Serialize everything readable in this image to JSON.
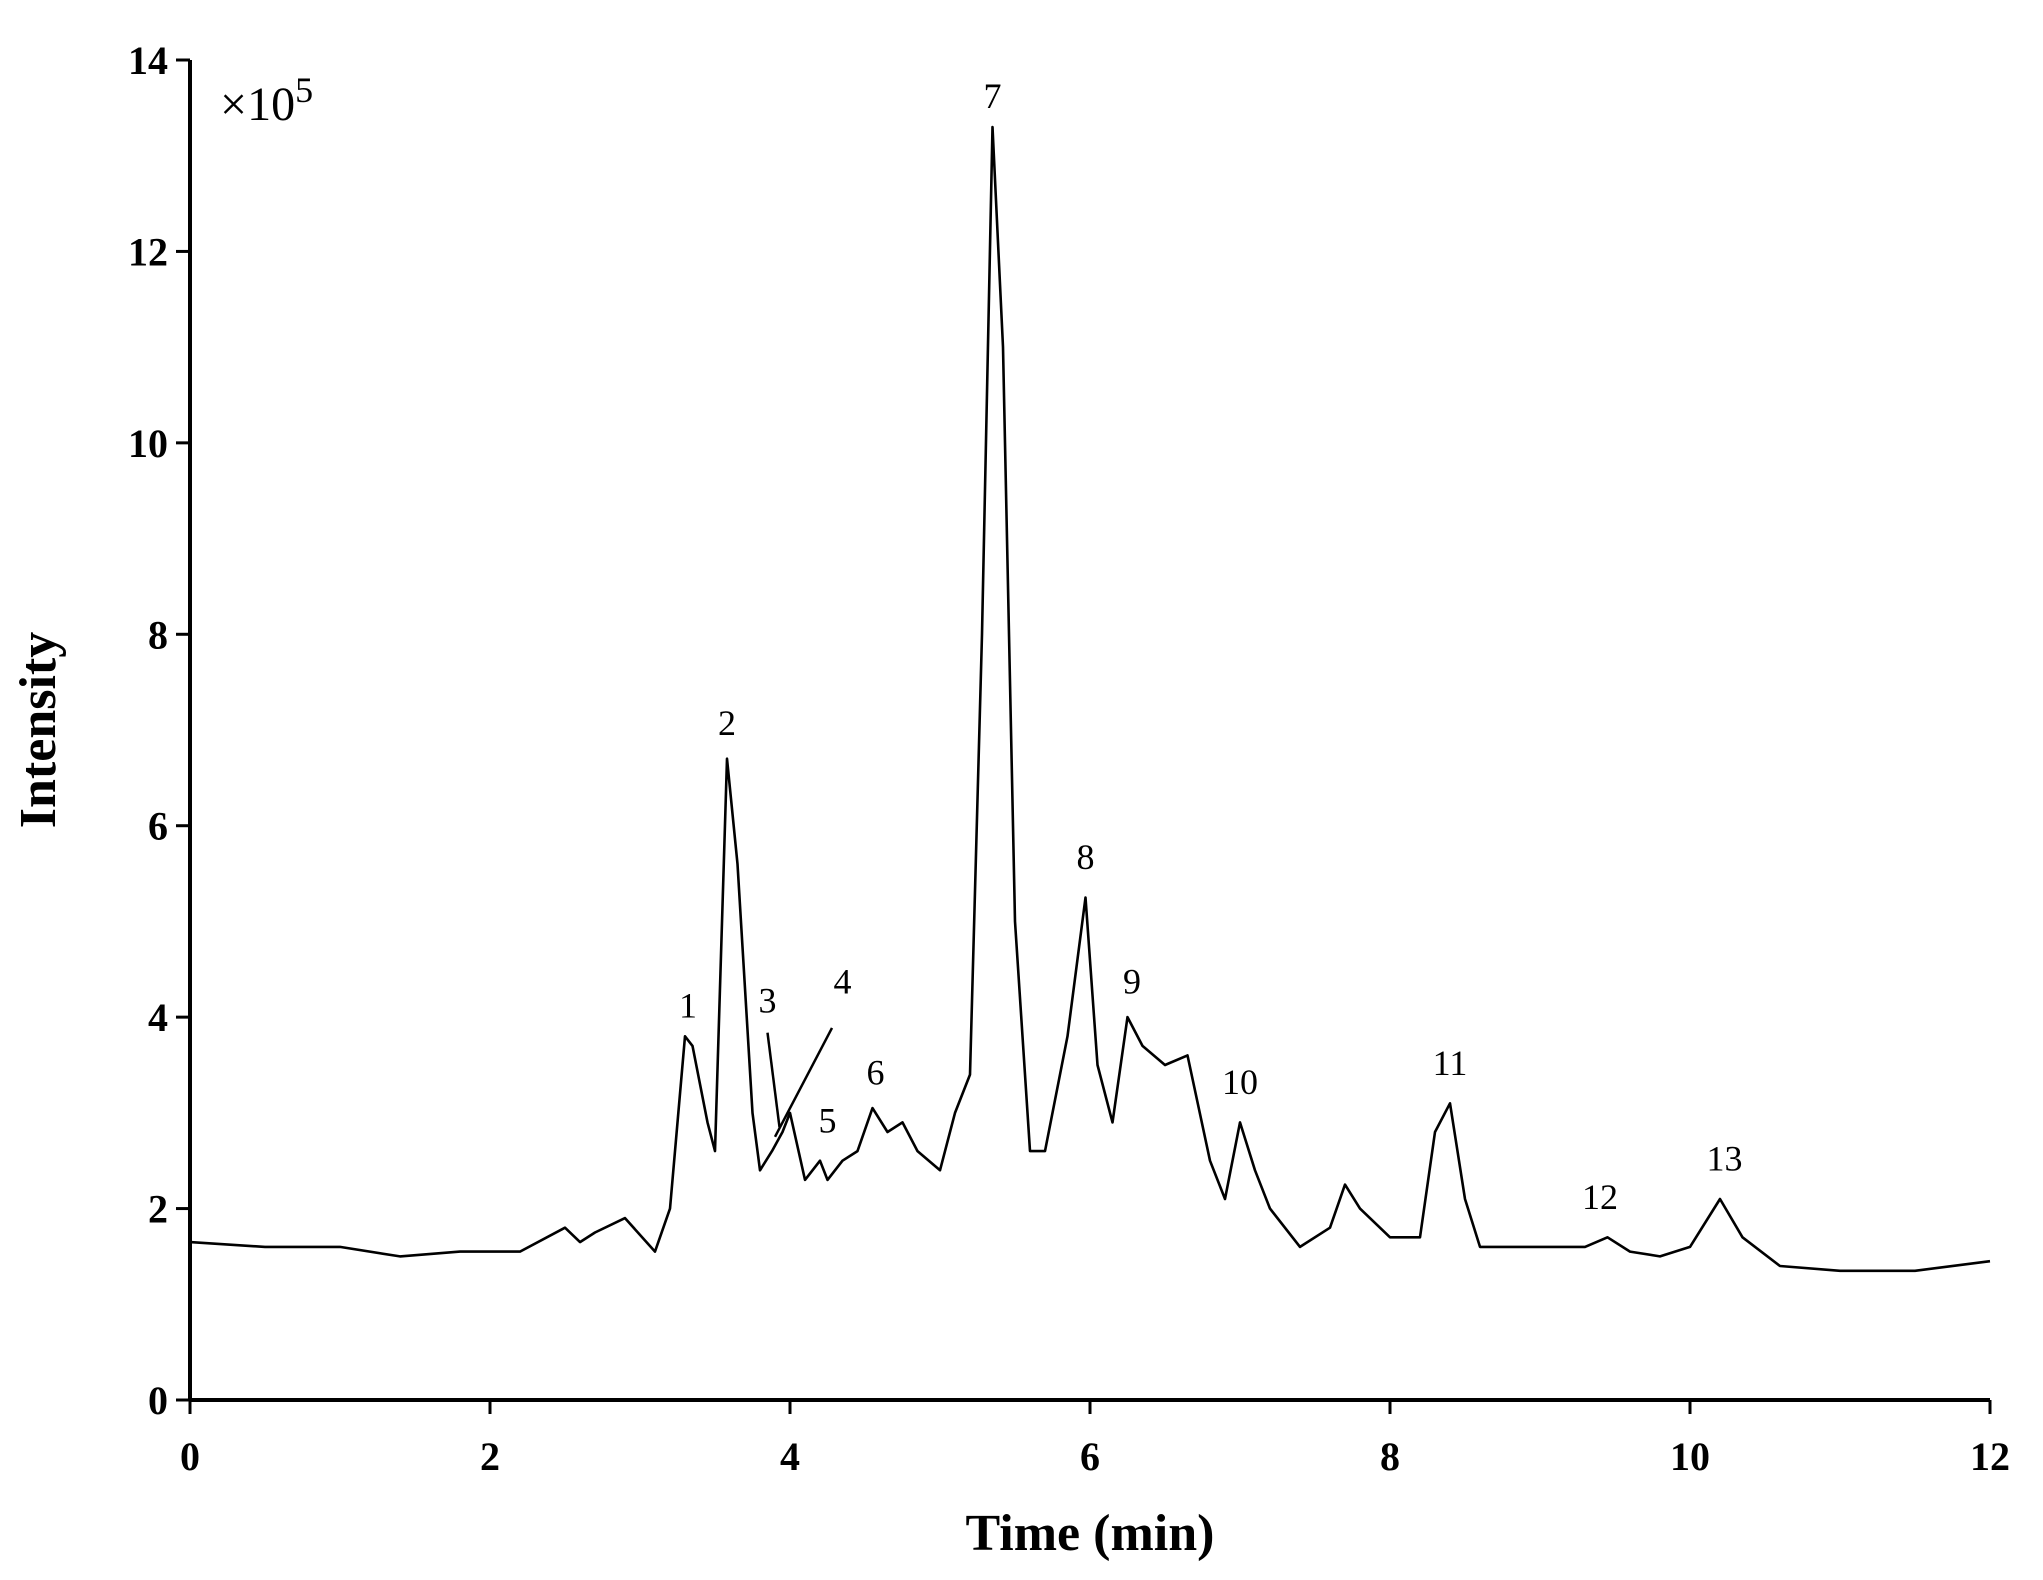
{
  "chart_data": {
    "type": "line",
    "xlabel": "Time (min)",
    "ylabel": "Intensity",
    "multiplier": {
      "base": "×10",
      "exponent": "5"
    },
    "xlim": [
      0,
      12
    ],
    "ylim": [
      0,
      14
    ],
    "xticks": [
      "0",
      "2",
      "4",
      "6",
      "8",
      "10",
      "12"
    ],
    "yticks": [
      "0",
      "2",
      "4",
      "6",
      "8",
      "10",
      "12",
      "14"
    ],
    "grid": false,
    "x": [
      0,
      0.5,
      1,
      1.4,
      1.8,
      2.2,
      2.5,
      2.6,
      2.7,
      2.9,
      3.1,
      3.2,
      3.3,
      3.35,
      3.45,
      3.5,
      3.58,
      3.65,
      3.75,
      3.8,
      3.88,
      3.95,
      4.0,
      4.1,
      4.2,
      4.25,
      4.35,
      4.45,
      4.55,
      4.65,
      4.75,
      4.85,
      5.0,
      5.1,
      5.2,
      5.28,
      5.35,
      5.42,
      5.5,
      5.6,
      5.7,
      5.85,
      5.97,
      6.05,
      6.15,
      6.25,
      6.35,
      6.5,
      6.65,
      6.8,
      6.9,
      7.0,
      7.1,
      7.2,
      7.4,
      7.6,
      7.7,
      7.8,
      8.0,
      8.2,
      8.3,
      8.4,
      8.5,
      8.6,
      9.0,
      9.3,
      9.45,
      9.6,
      9.8,
      10.0,
      10.2,
      10.35,
      10.6,
      11.0,
      11.5,
      12.0
    ],
    "y": [
      1.65,
      1.6,
      1.6,
      1.5,
      1.55,
      1.55,
      1.8,
      1.65,
      1.75,
      1.9,
      1.55,
      2.0,
      3.8,
      3.7,
      2.9,
      2.6,
      6.7,
      5.6,
      3.0,
      2.4,
      2.6,
      2.8,
      3.0,
      2.3,
      2.5,
      2.3,
      2.5,
      2.6,
      3.05,
      2.8,
      2.9,
      2.6,
      2.4,
      3.0,
      3.4,
      8.0,
      13.3,
      11.0,
      5.0,
      2.6,
      2.6,
      3.8,
      5.25,
      3.5,
      2.9,
      4.0,
      3.7,
      3.5,
      3.6,
      2.5,
      2.1,
      2.9,
      2.4,
      2.0,
      1.6,
      1.8,
      2.25,
      2.0,
      1.7,
      1.7,
      2.8,
      3.1,
      2.1,
      1.6,
      1.6,
      1.6,
      1.7,
      1.55,
      1.5,
      1.6,
      2.1,
      1.7,
      1.4,
      1.35,
      1.35,
      1.45
    ],
    "peaks": [
      {
        "label": "1",
        "x": 3.32,
        "y": 3.85
      },
      {
        "label": "2",
        "x": 3.58,
        "y": 6.8
      },
      {
        "label": "3",
        "x": 3.85,
        "y": 3.9
      },
      {
        "label": "4",
        "x": 4.35,
        "y": 4.1
      },
      {
        "label": "5",
        "x": 4.25,
        "y": 2.65
      },
      {
        "label": "6",
        "x": 4.57,
        "y": 3.15
      },
      {
        "label": "7",
        "x": 5.35,
        "y": 13.35
      },
      {
        "label": "8",
        "x": 5.97,
        "y": 5.4
      },
      {
        "label": "9",
        "x": 6.28,
        "y": 4.1
      },
      {
        "label": "10",
        "x": 7.0,
        "y": 3.05
      },
      {
        "label": "11",
        "x": 8.4,
        "y": 3.25
      },
      {
        "label": "12",
        "x": 9.4,
        "y": 1.85
      },
      {
        "label": "13",
        "x": 10.23,
        "y": 2.25
      }
    ]
  }
}
